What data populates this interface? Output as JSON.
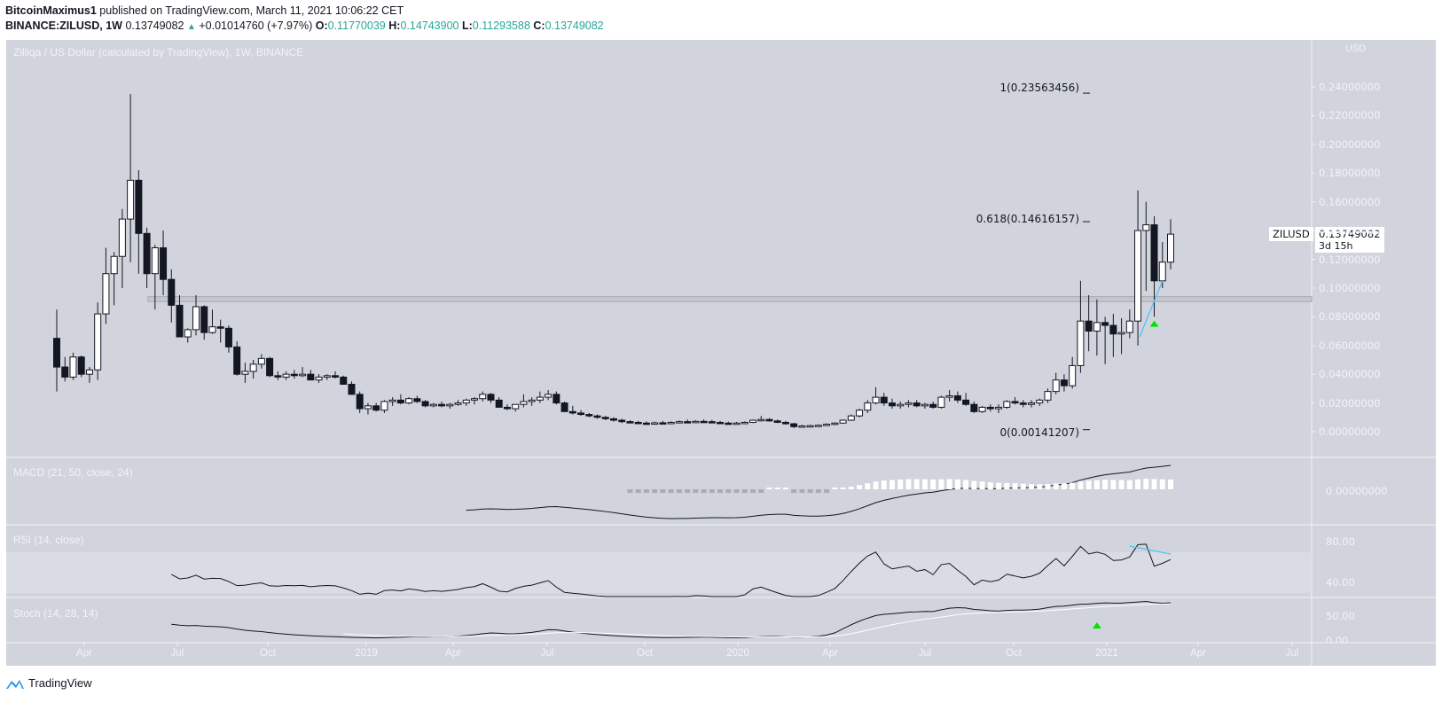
{
  "header": {
    "author": "BitcoinMaximus1",
    "published_text": "published on TradingView.com, March 11, 2021 10:06:22 CET",
    "symbol_interval": "BINANCE:ZILUSD, 1W",
    "last_price": "0.13749082",
    "change": "+0.01014760 (+7.97%)",
    "o_label": "O:",
    "o_value": "0.11770039",
    "h_label": "H:",
    "h_value": "0.14743900",
    "l_label": "L:",
    "l_value": "0.11293588",
    "c_label": "C:",
    "c_value": "0.13749082"
  },
  "main_pane": {
    "title": "Zilliqa / US Dollar (calculated by TradingView), 1W, BINANCE",
    "currency": "USD",
    "symbol_tag": "ZILUSD",
    "price_tag": "0.13749082",
    "countdown": "3d 15h",
    "fib_levels": [
      {
        "label": "1(0.23563456)",
        "value": 0.23563456
      },
      {
        "label": "0.618(0.14616157)",
        "value": 0.14616157
      },
      {
        "label": "0(0.00141207)",
        "value": 0.00141207
      }
    ],
    "resistance_zone": [
      0.0905,
      0.094
    ]
  },
  "indicators": {
    "macd": {
      "title": "MACD (21, 50, close, 24)",
      "axis_labels": [
        "0.00000000"
      ]
    },
    "rsi": {
      "title": "RSI (14, close)",
      "axis_labels": [
        "80.00",
        "40.00"
      ]
    },
    "stoch": {
      "title": "Stoch (14, 28, 14)",
      "axis_labels": [
        "50.00",
        "0.00"
      ]
    }
  },
  "footer": {
    "brand": "TradingView"
  },
  "colors": {
    "background": "#d1d4dc",
    "up_candle": "#ffffff",
    "down_candle": "#131722",
    "trendline": "#4fc3f7",
    "signal_arrow": "#00e600",
    "header_value": "#26a69a"
  },
  "chart_data": {
    "type": "candlestick",
    "title": "Zilliqa / US Dollar (calculated by TradingView), 1W, BINANCE",
    "xlabel": "",
    "ylabel": "USD",
    "ylim": [
      -0.005,
      0.255
    ],
    "y_ticks": [
      "0.24000000",
      "0.22000000",
      "0.20000000",
      "0.18000000",
      "0.16000000",
      "0.14000000",
      "0.12000000",
      "0.10000000",
      "0.08000000",
      "0.06000000",
      "0.04000000",
      "0.02000000",
      "0.00000000"
    ],
    "x_ticks": [
      "Apr",
      "Jul",
      "Oct",
      "2019",
      "Apr",
      "Jul",
      "Oct",
      "2020",
      "Apr",
      "Jul",
      "Oct",
      "2021",
      "Apr",
      "Jul"
    ],
    "x_tick_pos": [
      95,
      200,
      302,
      413,
      511,
      617,
      727,
      832,
      936,
      1043,
      1143,
      1248,
      1351,
      1457
    ],
    "grid": false,
    "candles": [
      [
        0.065,
        0.085,
        0.028,
        0.045
      ],
      [
        0.045,
        0.052,
        0.035,
        0.038
      ],
      [
        0.038,
        0.055,
        0.036,
        0.052
      ],
      [
        0.052,
        0.053,
        0.038,
        0.04
      ],
      [
        0.04,
        0.045,
        0.034,
        0.043
      ],
      [
        0.043,
        0.09,
        0.036,
        0.082
      ],
      [
        0.082,
        0.128,
        0.075,
        0.11
      ],
      [
        0.11,
        0.125,
        0.088,
        0.122
      ],
      [
        0.122,
        0.155,
        0.1,
        0.148
      ],
      [
        0.148,
        0.235,
        0.118,
        0.175
      ],
      [
        0.175,
        0.182,
        0.11,
        0.138
      ],
      [
        0.138,
        0.142,
        0.1,
        0.11
      ],
      [
        0.11,
        0.13,
        0.085,
        0.128
      ],
      [
        0.128,
        0.14,
        0.095,
        0.106
      ],
      [
        0.106,
        0.113,
        0.076,
        0.088
      ],
      [
        0.088,
        0.095,
        0.068,
        0.066
      ],
      [
        0.066,
        0.072,
        0.062,
        0.071
      ],
      [
        0.071,
        0.095,
        0.067,
        0.087
      ],
      [
        0.087,
        0.088,
        0.064,
        0.069
      ],
      [
        0.069,
        0.085,
        0.068,
        0.073
      ],
      [
        0.073,
        0.078,
        0.062,
        0.072
      ],
      [
        0.072,
        0.074,
        0.055,
        0.059
      ],
      [
        0.059,
        0.063,
        0.039,
        0.04
      ],
      [
        0.04,
        0.048,
        0.034,
        0.042
      ],
      [
        0.042,
        0.05,
        0.037,
        0.047
      ],
      [
        0.047,
        0.054,
        0.044,
        0.051
      ],
      [
        0.051,
        0.052,
        0.038,
        0.039
      ],
      [
        0.039,
        0.042,
        0.036,
        0.038
      ],
      [
        0.038,
        0.042,
        0.036,
        0.04
      ],
      [
        0.04,
        0.043,
        0.037,
        0.039
      ],
      [
        0.039,
        0.045,
        0.038,
        0.04
      ],
      [
        0.04,
        0.043,
        0.036,
        0.036
      ],
      [
        0.036,
        0.04,
        0.034,
        0.038
      ],
      [
        0.038,
        0.04,
        0.036,
        0.039
      ],
      [
        0.039,
        0.042,
        0.037,
        0.038
      ],
      [
        0.038,
        0.039,
        0.034,
        0.033
      ],
      [
        0.033,
        0.035,
        0.027,
        0.026
      ],
      [
        0.026,
        0.028,
        0.013,
        0.016
      ],
      [
        0.016,
        0.02,
        0.012,
        0.018
      ],
      [
        0.018,
        0.02,
        0.014,
        0.015
      ],
      [
        0.015,
        0.022,
        0.013,
        0.021
      ],
      [
        0.021,
        0.024,
        0.018,
        0.022
      ],
      [
        0.022,
        0.026,
        0.019,
        0.02
      ],
      [
        0.02,
        0.024,
        0.019,
        0.023
      ],
      [
        0.023,
        0.025,
        0.02,
        0.021
      ],
      [
        0.021,
        0.022,
        0.017,
        0.018
      ],
      [
        0.018,
        0.02,
        0.017,
        0.019
      ],
      [
        0.019,
        0.021,
        0.017,
        0.018
      ],
      [
        0.018,
        0.02,
        0.016,
        0.019
      ],
      [
        0.019,
        0.022,
        0.018,
        0.02
      ],
      [
        0.02,
        0.023,
        0.018,
        0.022
      ],
      [
        0.022,
        0.024,
        0.019,
        0.023
      ],
      [
        0.023,
        0.028,
        0.021,
        0.026
      ],
      [
        0.026,
        0.027,
        0.02,
        0.022
      ],
      [
        0.022,
        0.024,
        0.018,
        0.017
      ],
      [
        0.017,
        0.019,
        0.015,
        0.016
      ],
      [
        0.016,
        0.018,
        0.014,
        0.019
      ],
      [
        0.019,
        0.026,
        0.017,
        0.021
      ],
      [
        0.021,
        0.024,
        0.018,
        0.022
      ],
      [
        0.022,
        0.028,
        0.02,
        0.024
      ],
      [
        0.024,
        0.029,
        0.022,
        0.026
      ],
      [
        0.026,
        0.028,
        0.019,
        0.02
      ],
      [
        0.02,
        0.021,
        0.015,
        0.014
      ],
      [
        0.014,
        0.018,
        0.012,
        0.013
      ],
      [
        0.013,
        0.015,
        0.011,
        0.012
      ],
      [
        0.012,
        0.013,
        0.01,
        0.011
      ],
      [
        0.011,
        0.012,
        0.009,
        0.01
      ],
      [
        0.01,
        0.011,
        0.008,
        0.009
      ],
      [
        0.009,
        0.01,
        0.007,
        0.008
      ],
      [
        0.008,
        0.009,
        0.006,
        0.007
      ],
      [
        0.007,
        0.008,
        0.006,
        0.0065
      ],
      [
        0.0065,
        0.0075,
        0.0055,
        0.006
      ],
      [
        0.006,
        0.0072,
        0.005,
        0.0058
      ],
      [
        0.0058,
        0.007,
        0.005,
        0.0062
      ],
      [
        0.0062,
        0.0075,
        0.0055,
        0.006
      ],
      [
        0.006,
        0.0072,
        0.0052,
        0.0065
      ],
      [
        0.0065,
        0.0078,
        0.0058,
        0.007
      ],
      [
        0.007,
        0.0085,
        0.0062,
        0.0068
      ],
      [
        0.0068,
        0.008,
        0.006,
        0.0072
      ],
      [
        0.0072,
        0.0085,
        0.0065,
        0.007
      ],
      [
        0.007,
        0.0082,
        0.006,
        0.0065
      ],
      [
        0.0065,
        0.0075,
        0.0058,
        0.006
      ],
      [
        0.006,
        0.007,
        0.0052,
        0.0055
      ],
      [
        0.0055,
        0.0068,
        0.005,
        0.006
      ],
      [
        0.006,
        0.0072,
        0.0055,
        0.0065
      ],
      [
        0.0065,
        0.0085,
        0.006,
        0.008
      ],
      [
        0.008,
        0.011,
        0.0072,
        0.0085
      ],
      [
        0.0085,
        0.0095,
        0.007,
        0.0075
      ],
      [
        0.0075,
        0.0085,
        0.006,
        0.0065
      ],
      [
        0.0065,
        0.0075,
        0.005,
        0.0055
      ],
      [
        0.0055,
        0.0062,
        0.0025,
        0.0035
      ],
      [
        0.0035,
        0.0048,
        0.0028,
        0.004
      ],
      [
        0.004,
        0.0048,
        0.0032,
        0.0042
      ],
      [
        0.0042,
        0.005,
        0.0035,
        0.0045
      ],
      [
        0.0045,
        0.0058,
        0.004,
        0.0052
      ],
      [
        0.0052,
        0.0065,
        0.0045,
        0.006
      ],
      [
        0.006,
        0.0085,
        0.0055,
        0.008
      ],
      [
        0.008,
        0.012,
        0.0075,
        0.011
      ],
      [
        0.011,
        0.016,
        0.01,
        0.015
      ],
      [
        0.015,
        0.022,
        0.013,
        0.02
      ],
      [
        0.02,
        0.031,
        0.019,
        0.024
      ],
      [
        0.024,
        0.027,
        0.018,
        0.02
      ],
      [
        0.02,
        0.023,
        0.016,
        0.018
      ],
      [
        0.018,
        0.021,
        0.016,
        0.019
      ],
      [
        0.019,
        0.022,
        0.017,
        0.02
      ],
      [
        0.02,
        0.022,
        0.017,
        0.018
      ],
      [
        0.018,
        0.02,
        0.016,
        0.019
      ],
      [
        0.019,
        0.021,
        0.016,
        0.017
      ],
      [
        0.017,
        0.025,
        0.016,
        0.024
      ],
      [
        0.024,
        0.029,
        0.021,
        0.025
      ],
      [
        0.025,
        0.028,
        0.02,
        0.022
      ],
      [
        0.022,
        0.027,
        0.018,
        0.019
      ],
      [
        0.019,
        0.021,
        0.013,
        0.014
      ],
      [
        0.014,
        0.018,
        0.013,
        0.017
      ],
      [
        0.017,
        0.019,
        0.014,
        0.016
      ],
      [
        0.016,
        0.019,
        0.013,
        0.017
      ],
      [
        0.017,
        0.022,
        0.016,
        0.021
      ],
      [
        0.021,
        0.024,
        0.019,
        0.02
      ],
      [
        0.02,
        0.022,
        0.017,
        0.019
      ],
      [
        0.019,
        0.022,
        0.017,
        0.02
      ],
      [
        0.02,
        0.023,
        0.018,
        0.022
      ],
      [
        0.022,
        0.03,
        0.02,
        0.028
      ],
      [
        0.028,
        0.041,
        0.026,
        0.036
      ],
      [
        0.036,
        0.04,
        0.028,
        0.032
      ],
      [
        0.032,
        0.052,
        0.03,
        0.046
      ],
      [
        0.046,
        0.105,
        0.041,
        0.077
      ],
      [
        0.077,
        0.095,
        0.056,
        0.07
      ],
      [
        0.07,
        0.092,
        0.053,
        0.076
      ],
      [
        0.076,
        0.08,
        0.047,
        0.074
      ],
      [
        0.074,
        0.082,
        0.052,
        0.068
      ],
      [
        0.068,
        0.079,
        0.054,
        0.069
      ],
      [
        0.069,
        0.085,
        0.065,
        0.077
      ],
      [
        0.077,
        0.168,
        0.06,
        0.14
      ],
      [
        0.14,
        0.16,
        0.098,
        0.144
      ],
      [
        0.144,
        0.15,
        0.08,
        0.105
      ],
      [
        0.105,
        0.132,
        0.1,
        0.118
      ],
      [
        0.118,
        0.148,
        0.113,
        0.1375
      ]
    ]
  }
}
